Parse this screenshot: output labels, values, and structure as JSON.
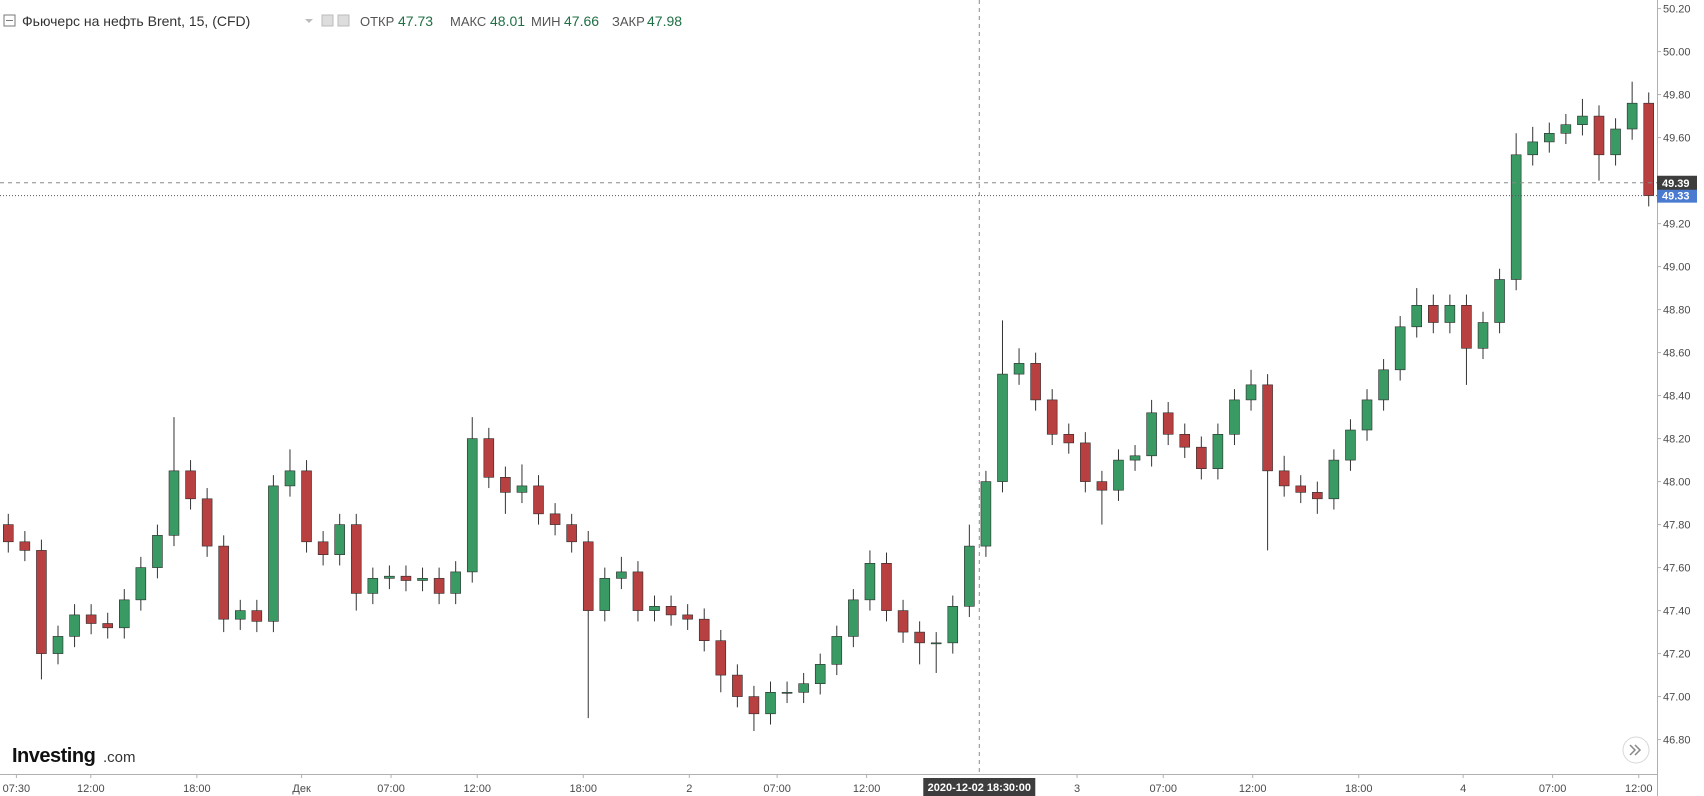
{
  "chart_data": {
    "type": "candlestick",
    "title": "Фьючерс на нефть Brent, 15, (CFD)",
    "stats": [
      {
        "label": "ОТКР",
        "value": "47.73"
      },
      {
        "label": "МАКС",
        "value": "48.01"
      },
      {
        "label": "МИН",
        "value": "47.66"
      },
      {
        "label": "ЗАКР",
        "value": "47.98"
      }
    ],
    "logo": {
      "brand": "Investing",
      "suffix": ".com"
    },
    "up_color": "#3a9a64",
    "down_color": "#b84040",
    "wick_color": "#333333",
    "open": [
      47.8,
      47.72,
      47.68,
      47.2,
      47.28,
      47.38,
      47.34,
      47.32,
      47.45,
      47.6,
      47.75,
      48.05,
      47.92,
      47.7,
      47.36,
      47.4,
      47.35,
      47.98,
      48.05,
      47.72,
      47.66,
      47.8,
      47.48,
      47.55,
      47.56,
      47.54,
      47.55,
      47.48,
      47.58,
      48.2,
      48.02,
      47.95,
      47.98,
      47.85,
      47.8,
      47.72,
      47.4,
      47.55,
      47.58,
      47.4,
      47.42,
      47.38,
      47.36,
      47.26,
      47.1,
      47.0,
      46.92,
      47.02,
      47.02,
      47.06,
      47.15,
      47.28,
      47.45,
      47.62,
      47.4,
      47.3,
      47.25,
      47.25,
      47.42,
      47.7,
      48.0,
      48.5,
      48.55,
      48.38,
      48.22,
      48.18,
      48.0,
      47.96,
      48.1,
      48.12,
      48.32,
      48.22,
      48.16,
      48.06,
      48.22,
      48.38,
      48.45,
      48.05,
      47.98,
      47.95,
      47.92,
      48.1,
      48.24,
      48.38,
      48.52,
      48.72,
      48.82,
      48.74,
      48.82,
      48.62,
      48.74,
      48.94,
      49.52,
      49.58,
      49.62,
      49.66,
      49.7,
      49.52,
      49.64,
      49.76
    ],
    "high": [
      47.85,
      47.77,
      47.73,
      47.33,
      47.43,
      47.43,
      47.39,
      47.5,
      47.65,
      47.8,
      48.3,
      48.1,
      47.97,
      47.75,
      47.45,
      47.45,
      48.03,
      48.15,
      48.1,
      47.77,
      47.85,
      47.85,
      47.6,
      47.61,
      47.61,
      47.6,
      47.6,
      47.63,
      48.3,
      48.25,
      48.07,
      48.08,
      48.03,
      47.9,
      47.85,
      47.77,
      47.6,
      47.65,
      47.63,
      47.47,
      47.47,
      47.43,
      47.41,
      47.31,
      47.15,
      47.05,
      47.07,
      47.07,
      47.11,
      47.2,
      47.33,
      47.5,
      47.68,
      47.67,
      47.45,
      47.35,
      47.3,
      47.47,
      47.8,
      48.05,
      48.75,
      48.62,
      48.6,
      48.43,
      48.27,
      48.23,
      48.05,
      48.15,
      48.17,
      48.38,
      48.37,
      48.27,
      48.21,
      48.27,
      48.43,
      48.52,
      48.5,
      48.12,
      48.03,
      48.0,
      48.15,
      48.29,
      48.43,
      48.57,
      48.77,
      48.9,
      48.87,
      48.87,
      48.87,
      48.79,
      48.99,
      49.62,
      49.65,
      49.67,
      49.71,
      49.78,
      49.75,
      49.69,
      49.86,
      49.81
    ],
    "low": [
      47.67,
      47.63,
      47.08,
      47.15,
      47.23,
      47.29,
      47.27,
      47.27,
      47.4,
      47.55,
      47.7,
      47.87,
      47.65,
      47.3,
      47.31,
      47.3,
      47.3,
      47.93,
      47.67,
      47.61,
      47.61,
      47.4,
      47.43,
      47.5,
      47.49,
      47.49,
      47.43,
      47.43,
      47.53,
      47.97,
      47.85,
      47.9,
      47.8,
      47.75,
      47.67,
      46.9,
      47.35,
      47.5,
      47.35,
      47.35,
      47.33,
      47.31,
      47.21,
      47.02,
      46.95,
      46.84,
      46.87,
      46.97,
      46.97,
      47.01,
      47.1,
      47.23,
      47.4,
      47.35,
      47.25,
      47.15,
      47.11,
      47.2,
      47.37,
      47.65,
      47.95,
      48.45,
      48.33,
      48.17,
      48.13,
      47.95,
      47.8,
      47.91,
      48.05,
      48.07,
      48.17,
      48.11,
      48.01,
      48.01,
      48.17,
      48.33,
      47.68,
      47.93,
      47.9,
      47.85,
      47.87,
      48.05,
      48.19,
      48.33,
      48.47,
      48.67,
      48.69,
      48.69,
      48.45,
      48.57,
      48.69,
      48.89,
      49.47,
      49.53,
      49.57,
      49.61,
      49.4,
      49.47,
      49.59,
      49.28
    ],
    "close": [
      47.72,
      47.68,
      47.2,
      47.28,
      47.38,
      47.34,
      47.32,
      47.45,
      47.6,
      47.75,
      48.05,
      47.92,
      47.7,
      47.36,
      47.4,
      47.35,
      47.98,
      48.05,
      47.72,
      47.66,
      47.8,
      47.48,
      47.55,
      47.56,
      47.54,
      47.55,
      47.48,
      47.58,
      48.2,
      48.02,
      47.95,
      47.98,
      47.85,
      47.8,
      47.72,
      47.4,
      47.55,
      47.58,
      47.4,
      47.42,
      47.38,
      47.36,
      47.26,
      47.1,
      47.0,
      46.92,
      47.02,
      47.02,
      47.06,
      47.15,
      47.28,
      47.45,
      47.62,
      47.4,
      47.3,
      47.25,
      47.25,
      47.42,
      47.7,
      48.0,
      48.5,
      48.55,
      48.38,
      48.22,
      48.18,
      48.0,
      47.96,
      48.1,
      48.12,
      48.32,
      48.22,
      48.16,
      48.06,
      48.22,
      48.38,
      48.45,
      48.05,
      47.98,
      47.95,
      47.92,
      48.1,
      48.24,
      48.38,
      48.52,
      48.72,
      48.82,
      48.74,
      48.82,
      48.62,
      48.74,
      48.94,
      49.52,
      49.58,
      49.62,
      49.66,
      49.7,
      49.52,
      49.64,
      49.76,
      49.33
    ],
    "xlim": [
      -0.5,
      99.5
    ],
    "xticks": [
      {
        "value": 0.49,
        "label": "07:30"
      },
      {
        "value": 4.98,
        "label": "12:00"
      },
      {
        "value": 11.38,
        "label": "18:00"
      },
      {
        "value": 17.7,
        "label": "Дек"
      },
      {
        "value": 23.1,
        "label": "07:00"
      },
      {
        "value": 28.3,
        "label": "12:00"
      },
      {
        "value": 34.7,
        "label": "18:00"
      },
      {
        "value": 41.1,
        "label": "2"
      },
      {
        "value": 46.4,
        "label": "07:00"
      },
      {
        "value": 51.8,
        "label": "12:00"
      },
      {
        "value": 64.5,
        "label": "3"
      },
      {
        "value": 69.7,
        "label": "07:00"
      },
      {
        "value": 75.1,
        "label": "12:00"
      },
      {
        "value": 81.5,
        "label": "18:00"
      },
      {
        "value": 87.8,
        "label": "4"
      },
      {
        "value": 93.2,
        "label": "07:00"
      },
      {
        "value": 98.4,
        "label": "12:00"
      }
    ],
    "ylim": [
      46.64,
      50.24
    ],
    "yticks": [
      {
        "value": 46.8,
        "label": "46.80"
      },
      {
        "value": 47,
        "label": "47.00"
      },
      {
        "value": 47.2,
        "label": "47.20"
      },
      {
        "value": 47.4,
        "label": "47.40"
      },
      {
        "value": 47.6,
        "label": "47.60"
      },
      {
        "value": 47.8,
        "label": "47.80"
      },
      {
        "value": 48,
        "label": "48.00"
      },
      {
        "value": 48.2,
        "label": "48.20"
      },
      {
        "value": 48.4,
        "label": "48.40"
      },
      {
        "value": 48.6,
        "label": "48.60"
      },
      {
        "value": 48.8,
        "label": "48.80"
      },
      {
        "value": 49,
        "label": "49.00"
      },
      {
        "value": 49.2,
        "label": "49.20"
      },
      {
        "value": 49.6,
        "label": "49.60"
      },
      {
        "value": 49.8,
        "label": "49.80"
      },
      {
        "value": 50,
        "label": "50.00"
      },
      {
        "value": 50.2,
        "label": "50.20"
      }
    ],
    "crosshair": {
      "x": {
        "value": 58.6,
        "label": "2020-12-02 18:30:00"
      },
      "y": {
        "value": 49.39,
        "label": "49.39"
      }
    },
    "last_price": {
      "value": 49.33,
      "label": "49.33",
      "color": "#4a7bd1"
    }
  }
}
